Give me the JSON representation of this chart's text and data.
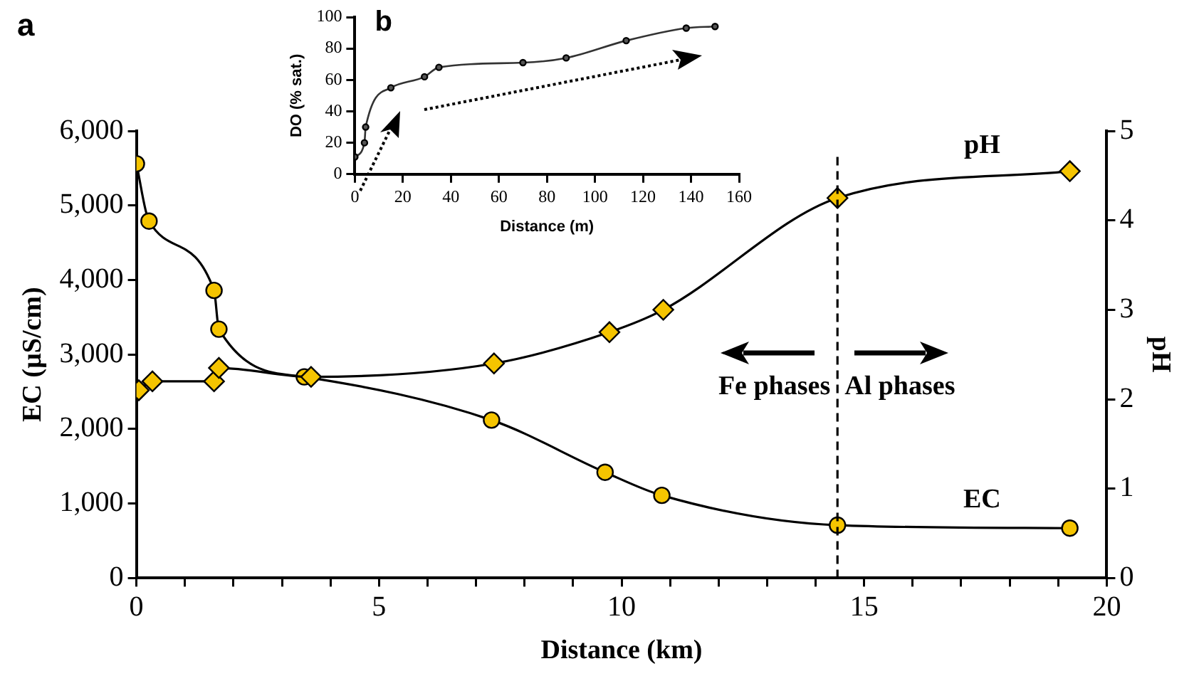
{
  "chart_data": [
    {
      "type": "line",
      "title": "a",
      "xlabel": "Distance (km)",
      "ylabel": "EC (µS/cm)",
      "y2label": "pH",
      "xlim": [
        0,
        20
      ],
      "xticks": [
        0,
        {
          "value": 1,
          "label": null
        },
        {
          "value": 2,
          "label": null
        },
        {
          "value": 3,
          "label": null
        },
        {
          "value": 4,
          "label": null
        },
        5,
        {
          "value": 6,
          "label": null
        },
        {
          "value": 7,
          "label": null
        },
        {
          "value": 8,
          "label": null
        },
        {
          "value": 9,
          "label": null
        },
        10,
        {
          "value": 11,
          "label": null
        },
        {
          "value": 12,
          "label": null
        },
        {
          "value": 13,
          "label": null
        },
        {
          "value": 14,
          "label": null
        },
        15,
        {
          "value": 16,
          "label": null
        },
        {
          "value": 17,
          "label": null
        },
        {
          "value": 18,
          "label": null
        },
        {
          "value": 19,
          "label": null
        },
        20
      ],
      "ylim": [
        0,
        6000
      ],
      "yticks": [
        0,
        {
          "value": 1000,
          "label": "1,000"
        },
        {
          "value": 2000,
          "label": "2,000"
        },
        {
          "value": 3000,
          "label": "3,000"
        },
        {
          "value": 4000,
          "label": "4,000"
        },
        {
          "value": 5000,
          "label": "5,000"
        },
        {
          "value": 6000,
          "label": "6,000"
        }
      ],
      "y2lim": [
        0,
        5
      ],
      "y2ticks": [
        0,
        1,
        2,
        3,
        4,
        5
      ],
      "series": [
        {
          "name": "EC",
          "color": "#f5c400",
          "marker": "circle",
          "x": [
            0,
            0.26,
            1.6,
            1.7,
            3.46,
            7.32,
            9.66,
            10.83,
            14.45,
            19.24
          ],
          "values": [
            5560,
            4790,
            3860,
            3340,
            2700,
            2120,
            1420,
            1110,
            710,
            670
          ]
        },
        {
          "name": "pH",
          "color": "#f5c400",
          "marker": "diamond",
          "axis": "y2",
          "x": [
            0.05,
            0.33,
            1.6,
            1.7,
            3.6,
            7.37,
            9.75,
            10.86,
            14.45,
            19.24
          ],
          "values": [
            2.1,
            2.2,
            2.2,
            2.35,
            2.25,
            2.4,
            2.75,
            3.0,
            4.25,
            4.55
          ]
        }
      ],
      "ref_lines": [
        {
          "axis": "x",
          "value": 14.45,
          "label": null,
          "color": "#000000",
          "line_style": "dashed"
        }
      ],
      "annotations": [
        "Fe phases",
        "Al phases"
      ],
      "grid": false,
      "legend": false
    },
    {
      "type": "line",
      "title": "b",
      "xlabel": "Distance (m)",
      "ylabel": "DO (% sat.)",
      "xlim": [
        0,
        160
      ],
      "xticks": [
        0,
        20,
        40,
        60,
        80,
        100,
        120,
        140,
        160
      ],
      "ylim": [
        0,
        100
      ],
      "yticks": [
        0,
        20,
        40,
        60,
        80,
        100
      ],
      "series": [
        {
          "color": "#555555",
          "marker": "circle",
          "x": [
            0,
            4,
            4.5,
            15,
            29,
            35,
            70,
            88,
            113,
            138,
            150
          ],
          "values": [
            11,
            20,
            30,
            55,
            62,
            68,
            71,
            74,
            85,
            93,
            94
          ]
        }
      ],
      "grid": false,
      "legend": false
    }
  ]
}
